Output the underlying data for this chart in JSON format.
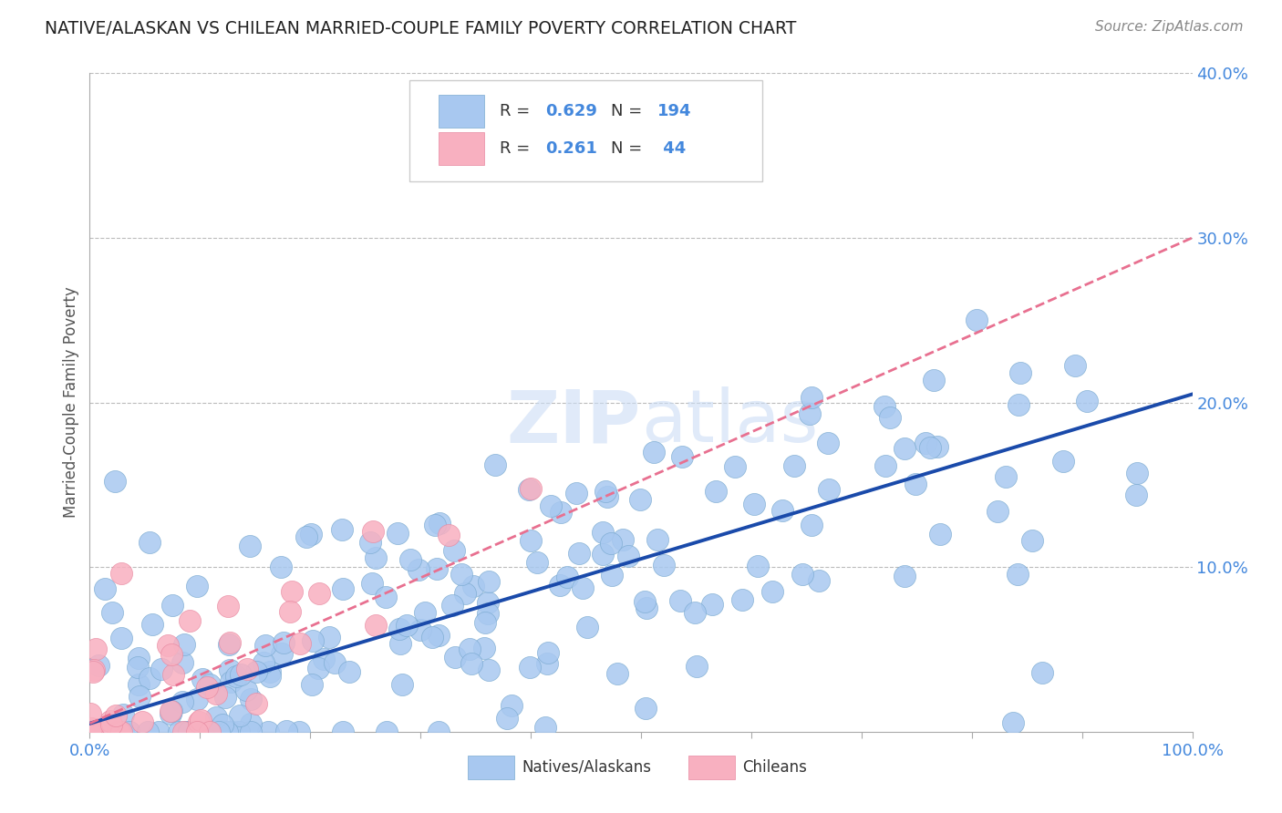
{
  "title": "NATIVE/ALASKAN VS CHILEAN MARRIED-COUPLE FAMILY POVERTY CORRELATION CHART",
  "source": "Source: ZipAtlas.com",
  "ylabel": "Married-Couple Family Poverty",
  "xlim": [
    0,
    1
  ],
  "ylim": [
    0,
    0.4
  ],
  "native_R": 0.629,
  "native_N": 194,
  "chilean_R": 0.261,
  "chilean_N": 44,
  "native_color": "#a8c8f0",
  "native_edge_color": "#7aaad0",
  "chilean_color": "#f8b0c0",
  "chilean_edge_color": "#e888a0",
  "trend_native_color": "#1a4aaa",
  "trend_chilean_color": "#e87090",
  "background_color": "#ffffff",
  "grid_color": "#bbbbbb",
  "watermark_color": "#d5e5f5",
  "title_color": "#222222",
  "axis_label_color": "#4488dd",
  "legend_text_color": "#333333",
  "legend_val_color": "#4488dd",
  "native_seed": 12,
  "chilean_seed": 99,
  "trend_native_slope": 0.2,
  "trend_native_intercept": 0.005,
  "trend_chilean_slope": 0.295,
  "trend_chilean_intercept": 0.005
}
